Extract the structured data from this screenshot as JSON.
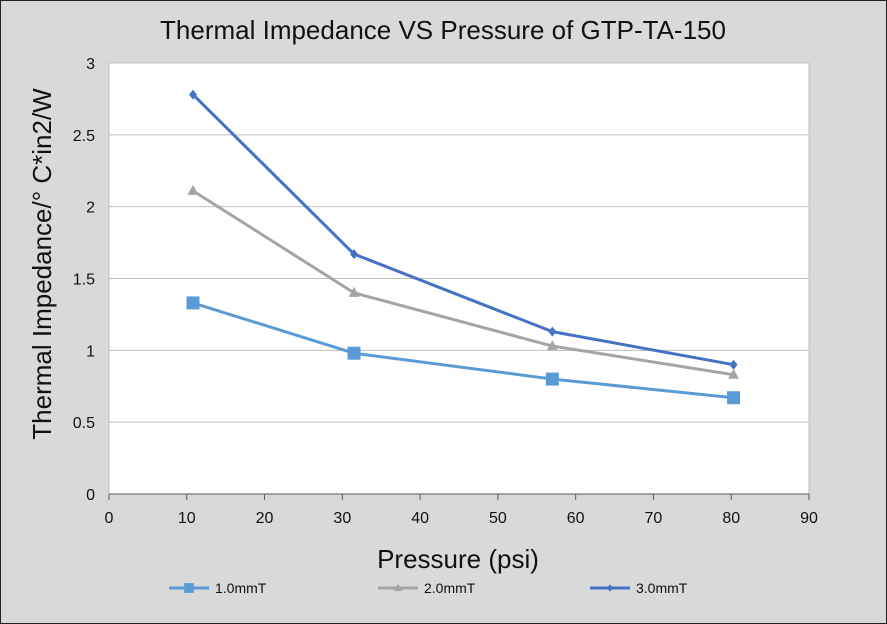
{
  "chart_data": {
    "type": "line",
    "title": "Thermal Impedance VS Pressure of GTP-TA-150",
    "xlabel": "Pressure (psi)",
    "ylabel": "Thermal Impedance/° C*in2/W",
    "xlim": [
      0,
      90
    ],
    "ylim": [
      0,
      3
    ],
    "xticks": [
      0,
      10,
      20,
      30,
      40,
      50,
      60,
      70,
      80,
      90
    ],
    "yticks": [
      0,
      0.5,
      1,
      1.5,
      2,
      2.5,
      3
    ],
    "xtick_labels": [
      "0",
      "10",
      "20",
      "30",
      "40",
      "50",
      "60",
      "70",
      "80",
      "90"
    ],
    "ytick_labels": [
      "0",
      "0.5",
      "1",
      "1.5",
      "2",
      "2.5",
      "3"
    ],
    "grid": "horizontal",
    "legend_position": "bottom",
    "series": [
      {
        "name": "1.0mmT",
        "color": "#5b9bd5",
        "marker": "square",
        "x": [
          10.8,
          31.5,
          57,
          80.3
        ],
        "y": [
          1.33,
          0.98,
          0.8,
          0.67
        ]
      },
      {
        "name": "2.0mmT",
        "color": "#a5a5a5",
        "marker": "triangle",
        "x": [
          10.8,
          31.5,
          57,
          80.3
        ],
        "y": [
          2.11,
          1.4,
          1.03,
          0.83
        ]
      },
      {
        "name": "3.0mmT",
        "color": "#4472c4",
        "marker": "diamond",
        "x": [
          10.8,
          31.5,
          57,
          80.3
        ],
        "y": [
          2.78,
          1.67,
          1.13,
          0.9
        ]
      }
    ]
  }
}
